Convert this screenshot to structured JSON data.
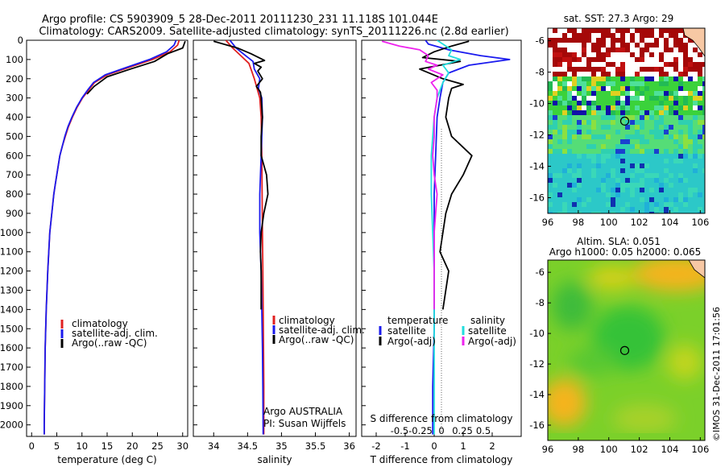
{
  "header": {
    "title_line1": "Argo profile: CS 5903909_5 28-Dec-2011 20111230_231 11.118S 101.044E",
    "title_line2": "Climatology: CARS2009. Satellite-adjusted climatology: synTS_20111226.nc (2.8d earlier)"
  },
  "colors": {
    "climatology": "#e02020",
    "satellite_adj": "#1a1aee",
    "argo": "#000000",
    "salinity_satellite": "#22dddd",
    "salinity_argo": "#ee22ee"
  },
  "depth_axis": {
    "range": [
      0,
      2060
    ],
    "ticks": [
      "0",
      "100",
      "200",
      "300",
      "400",
      "500",
      "600",
      "700",
      "800",
      "900",
      "1000",
      "1100",
      "1200",
      "1300",
      "1400",
      "1500",
      "1600",
      "1700",
      "1800",
      "1900",
      "2000"
    ]
  },
  "chart_data": [
    {
      "type": "line",
      "id": "temperature",
      "xlabel": "temperature (deg C)",
      "xlim": [
        -1,
        31
      ],
      "xticks": [
        "0",
        "5",
        "10",
        "15",
        "20",
        "25",
        "30"
      ],
      "xtick_values": [
        0,
        5,
        10,
        15,
        20,
        25,
        30
      ],
      "ylim": [
        0,
        2060
      ],
      "y_inverted": true,
      "legend": [
        "climatology",
        "satellite-adj. clim.",
        "Argo(..raw -QC)"
      ],
      "legend_position": "lower-center",
      "series": [
        {
          "name": "climatology",
          "color_key": "climatology",
          "x": [
            29.3,
            29.0,
            27.5,
            24,
            19.5,
            15,
            12.5,
            11.3,
            10.1,
            9.0,
            8.1,
            7.3,
            6.7,
            6.1,
            5.6,
            5.3,
            5.0,
            4.7,
            4.4,
            3.6,
            3.2,
            2.9,
            2.7,
            2.6,
            2.5,
            2.5
          ],
          "y": [
            0,
            25,
            60,
            100,
            140,
            180,
            220,
            260,
            300,
            350,
            400,
            450,
            500,
            550,
            600,
            650,
            700,
            750,
            800,
            1000,
            1200,
            1400,
            1600,
            1800,
            2000,
            2050
          ]
        },
        {
          "name": "satellite-adj. clim.",
          "color_key": "satellite_adj",
          "x": [
            28.7,
            28.3,
            26.8,
            23.4,
            19.0,
            14.6,
            12.3,
            11.1,
            10.0,
            8.9,
            8.0,
            7.2,
            6.6,
            6.1,
            5.6,
            5.3,
            5.0,
            4.7,
            4.4,
            3.6,
            3.2,
            2.9,
            2.7,
            2.6,
            2.5,
            2.5
          ],
          "y": [
            0,
            25,
            60,
            100,
            140,
            180,
            220,
            260,
            300,
            350,
            400,
            450,
            500,
            550,
            600,
            650,
            700,
            750,
            800,
            1000,
            1200,
            1400,
            1600,
            1800,
            2000,
            2050
          ]
        },
        {
          "name": "Argo(..raw -QC)",
          "color_key": "argo",
          "x": [
            30.5,
            30.0,
            27.0,
            24.4,
            19.6,
            15.0,
            12.4,
            11.0
          ],
          "y": [
            5,
            40,
            70,
            110,
            150,
            190,
            240,
            280
          ]
        }
      ]
    },
    {
      "type": "line",
      "id": "salinity",
      "xlabel": "salinity",
      "xlim": [
        33.7,
        36.1
      ],
      "xticks": [
        "34",
        "34.5",
        "35",
        "35.5",
        "36"
      ],
      "xtick_values": [
        34,
        34.5,
        35,
        35.5,
        36
      ],
      "ylim": [
        0,
        2060
      ],
      "y_inverted": true,
      "legend": [
        "climatology",
        "satellite-adj. clim.",
        "Argo(..raw -QC)"
      ],
      "legend_position": "lower-right",
      "annotation_lines": [
        "Argo AUSTRALIA",
        "PI: Susan Wijffels"
      ],
      "series": [
        {
          "name": "climatology",
          "color_key": "climatology",
          "x": [
            34.18,
            34.28,
            34.4,
            34.52,
            34.56,
            34.6,
            34.64,
            34.68,
            34.7,
            34.71,
            34.715,
            34.72,
            34.725,
            34.73,
            34.735,
            34.74,
            34.74
          ],
          "y": [
            0,
            40,
            80,
            120,
            160,
            200,
            250,
            300,
            400,
            600,
            800,
            1000,
            1200,
            1400,
            1600,
            1800,
            2050
          ]
        },
        {
          "name": "satellite-adj. clim.",
          "color_key": "satellite_adj",
          "x": [
            34.24,
            34.33,
            34.47,
            34.58,
            34.6,
            34.68,
            34.66,
            34.71,
            34.72,
            34.7,
            34.68,
            34.68,
            34.7,
            34.71,
            34.72,
            34.725,
            34.73
          ],
          "y": [
            0,
            40,
            80,
            110,
            150,
            200,
            250,
            300,
            400,
            600,
            800,
            1000,
            1200,
            1400,
            1600,
            1800,
            2050
          ]
        },
        {
          "name": "Argo(..raw -QC)",
          "color_key": "argo",
          "x": [
            34.0,
            34.35,
            34.55,
            34.75,
            34.6,
            34.7,
            34.65,
            34.72,
            34.63,
            34.69,
            34.7,
            34.72,
            34.7,
            34.7,
            34.78,
            34.8,
            34.74,
            34.7,
            34.69,
            34.7,
            34.7
          ],
          "y": [
            5,
            40,
            70,
            105,
            120,
            140,
            160,
            200,
            240,
            270,
            300,
            400,
            500,
            600,
            700,
            800,
            900,
            1000,
            1100,
            1200,
            1400
          ]
        }
      ]
    },
    {
      "type": "line",
      "id": "difference",
      "xlabel": "T difference from climatology",
      "x2label": "S difference from climatology",
      "xlim": [
        -2.5,
        3
      ],
      "xticks": [
        "-2",
        "-1",
        "0",
        "1",
        "2"
      ],
      "xtick_values": [
        -2,
        -1,
        0,
        1,
        2
      ],
      "x2ticks": [
        "-0.5",
        "-0.25",
        "0",
        "0.25",
        "0.5"
      ],
      "x2tick_values": [
        -0.5,
        -0.25,
        0,
        0.25,
        0.5
      ],
      "ylim": [
        0,
        2060
      ],
      "y_inverted": true,
      "legend_groups": [
        {
          "title": "temperature",
          "items": [
            "satellite",
            "Argo(-adj)"
          ]
        },
        {
          "title": "salinity",
          "items": [
            "satellite",
            "Argo(-adj)"
          ]
        }
      ],
      "series": [
        {
          "name": "satellite",
          "group": "temperature",
          "color_key": "satellite_adj",
          "x": [
            -0.3,
            -0.2,
            0.5,
            1.6,
            2.6,
            1.2,
            0.5,
            0.3,
            0.2,
            0.1,
            0.05,
            0.0,
            0.0,
            0.0,
            0.0,
            -0.05,
            -0.05
          ],
          "y": [
            0,
            20,
            50,
            80,
            100,
            130,
            170,
            220,
            300,
            400,
            600,
            800,
            1000,
            1200,
            1500,
            1800,
            2050
          ]
        },
        {
          "name": "Argo(-adj)",
          "group": "temperature",
          "color_key": "argo",
          "x": [
            1.2,
            0.6,
            0.0,
            -0.4,
            0.9,
            0.2,
            -0.5,
            0.3,
            1.0,
            0.6,
            0.5,
            0.4,
            0.6,
            1.3,
            1.0,
            0.6,
            0.4,
            0.3,
            0.2,
            0.5,
            0.3
          ],
          "y": [
            5,
            30,
            60,
            90,
            110,
            130,
            150,
            200,
            230,
            250,
            300,
            400,
            500,
            600,
            700,
            800,
            900,
            1000,
            1100,
            1200,
            1400
          ]
        },
        {
          "name": "satellite",
          "group": "salinity",
          "color_key": "salinity_satellite",
          "x": [
            0.1,
            0.3,
            0.6,
            0.5,
            0.9,
            0.3,
            0.5,
            0.3,
            0.1,
            0.0,
            -0.1,
            -0.1,
            -0.05,
            0.0,
            0.0,
            0.0,
            0.0
          ],
          "y": [
            0,
            20,
            50,
            80,
            100,
            130,
            170,
            220,
            300,
            400,
            600,
            800,
            1000,
            1200,
            1500,
            1800,
            2050
          ]
        },
        {
          "name": "Argo(-adj)",
          "group": "salinity",
          "color_key": "salinity_argo",
          "x": [
            -1.8,
            -1.2,
            -0.5,
            -0.2,
            -0.3,
            0.1,
            -0.2,
            0.3,
            -0.1,
            0.1,
            0.1,
            0.0,
            0.0,
            -0.05,
            0.0,
            0.1,
            0.05,
            0.0,
            0.0,
            0.0,
            0.0
          ],
          "y": [
            5,
            30,
            50,
            80,
            110,
            130,
            150,
            180,
            220,
            260,
            300,
            400,
            500,
            600,
            700,
            800,
            900,
            1000,
            1100,
            1200,
            1400
          ]
        }
      ]
    },
    {
      "type": "heatmap",
      "id": "sst_map",
      "title": "sat. SST: 27.3 Argo: 29",
      "xticks": [
        "96",
        "98",
        "100",
        "102",
        "104",
        "106"
      ],
      "xtick_values": [
        96,
        98,
        100,
        102,
        104,
        106
      ],
      "yticks": [
        "-6",
        "-8",
        "-10",
        "-12",
        "-14",
        "-16"
      ],
      "ytick_values": [
        -6,
        -8,
        -10,
        -12,
        -14,
        -16
      ],
      "xlim": [
        96,
        106.3
      ],
      "ylim": [
        -17,
        -5.2
      ],
      "argo_position": [
        101.044,
        -11.118
      ]
    },
    {
      "type": "heatmap",
      "id": "sla_map",
      "title_line1": "Altim. SLA: 0.051",
      "title_line2": "Argo h1000: 0.05 h2000: 0.065",
      "xticks": [
        "96",
        "98",
        "100",
        "102",
        "104",
        "106"
      ],
      "xtick_values": [
        96,
        98,
        100,
        102,
        104,
        106
      ],
      "yticks": [
        "-6",
        "-8",
        "-10",
        "-12",
        "-14",
        "-16"
      ],
      "ytick_values": [
        -6,
        -8,
        -10,
        -12,
        -14,
        -16
      ],
      "xlim": [
        96,
        106.3
      ],
      "ylim": [
        -17,
        -5.2
      ],
      "argo_position": [
        101.044,
        -11.118
      ]
    }
  ],
  "footer": {
    "credit": "©IMOS 31-Dec-2011 17:01:56"
  }
}
